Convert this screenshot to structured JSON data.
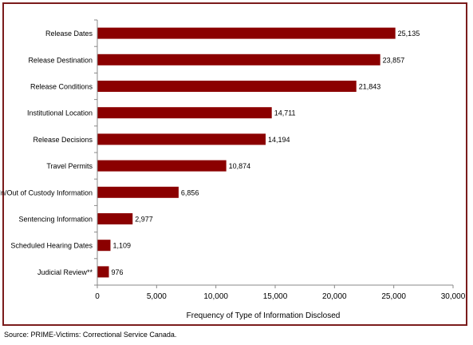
{
  "source_note": "Source:  PRIME-Victims: Correctional Service Canada.",
  "chart_data": {
    "type": "bar",
    "orientation": "horizontal",
    "title": "",
    "xlabel": "Frequency of Type of Information Disclosed",
    "ylabel": "",
    "categories": [
      "Release Dates",
      "Release Destination",
      "Release Conditions",
      "Institutional Location",
      "Release Decisions",
      "Travel Permits",
      "In/Out of Custody Information",
      "Sentencing Information",
      "Scheduled Hearing Dates",
      "Judicial Review**"
    ],
    "values": [
      25135,
      23857,
      21843,
      14711,
      14194,
      10874,
      6856,
      2977,
      1109,
      976
    ],
    "value_labels": [
      "25,135",
      "23,857",
      "21,843",
      "14,711",
      "14,194",
      "10,874",
      "6,856",
      "2,977",
      "1,109",
      "976"
    ],
    "xlim": [
      0,
      30000
    ],
    "xticks": [
      0,
      5000,
      10000,
      15000,
      20000,
      25000,
      30000
    ],
    "xtick_labels": [
      "0",
      "5,000",
      "10,000",
      "15,000",
      "20,000",
      "25,000",
      "30,000"
    ],
    "grid": false,
    "legend": false,
    "colors": {
      "bar": "#8b0000",
      "frame": "#7b1c1c",
      "axis": "#888888"
    }
  }
}
